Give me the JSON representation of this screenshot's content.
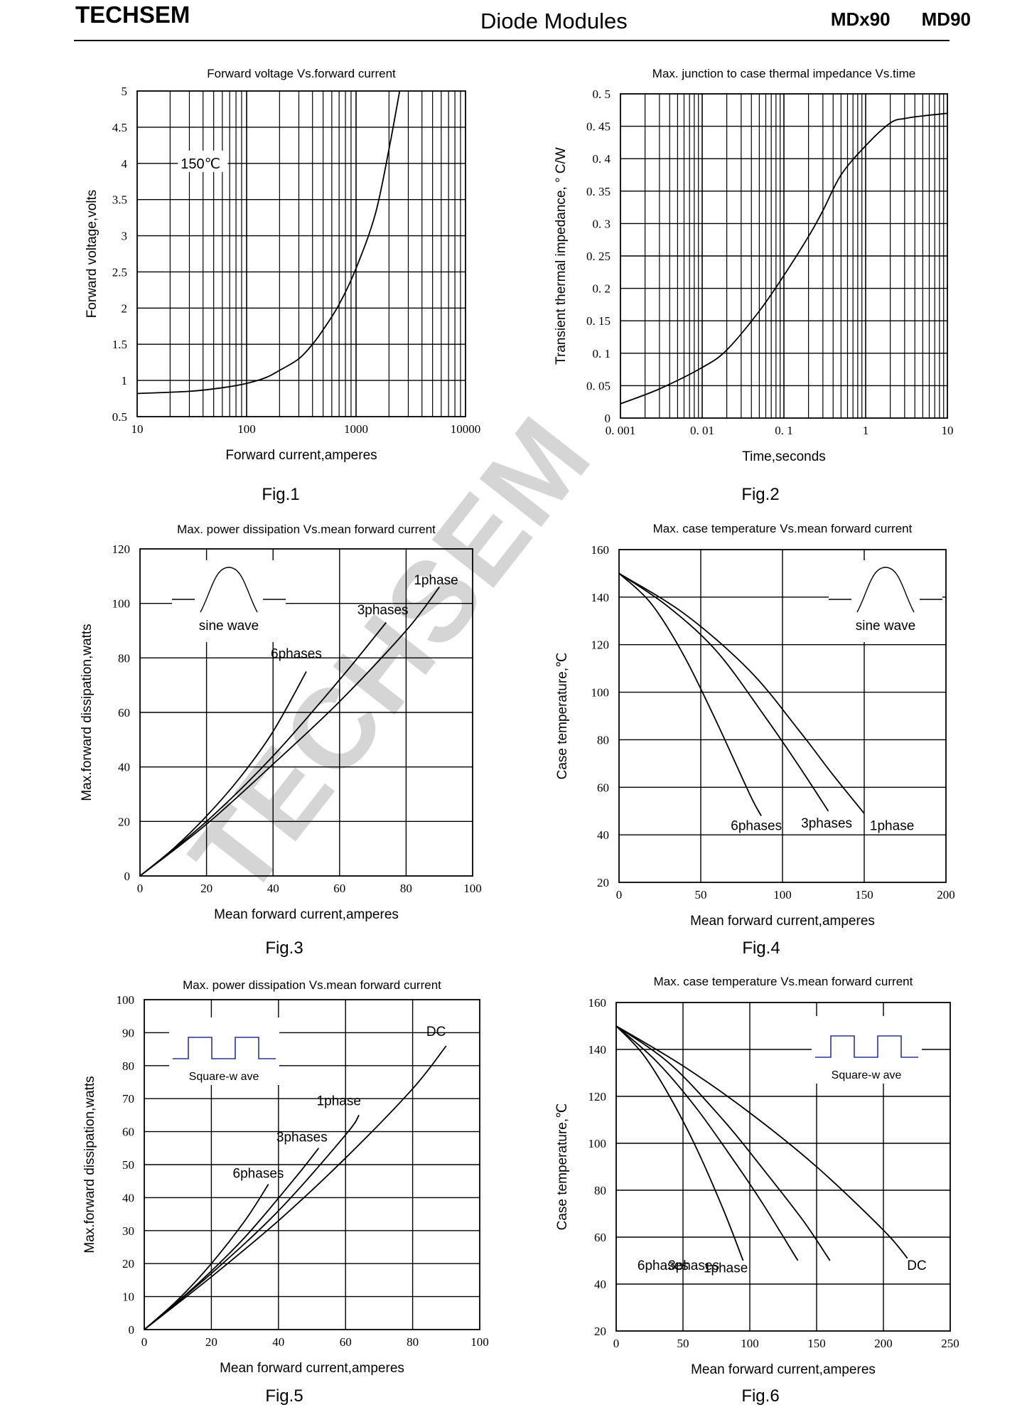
{
  "header": {
    "brand": "TECHSEM",
    "center": "Diode Modules",
    "part1": "MDx90",
    "part2": "MD90"
  },
  "watermark": "TECHSEM",
  "chart_data": [
    {
      "type": "line",
      "figure": "Fig.1",
      "title": "Forward  voltage  Vs.forward  current",
      "xlabel": "Forward  current,amperes",
      "ylabel": "Forward  voltage,volts",
      "xscale": "log",
      "xlim": [
        10,
        10000
      ],
      "ylim": [
        0.5,
        5
      ],
      "xticks": [
        10,
        100,
        1000,
        10000
      ],
      "xtick_labels": [
        "10",
        "100",
        "1000",
        "10000"
      ],
      "yticks": [
        0.5,
        1,
        1.5,
        2,
        2.5,
        3,
        3.5,
        4,
        4.5,
        5
      ],
      "ytick_labels": [
        "0.5",
        "1",
        "1.5",
        "2",
        "2.5",
        "3",
        "3.5",
        "4",
        "4.5",
        "5"
      ],
      "annotations": [
        {
          "text": "150℃",
          "x": 25,
          "y": 4
        }
      ],
      "series": [
        {
          "label": "",
          "label_at": null,
          "x": [
            10,
            30,
            60,
            100,
            150,
            200,
            300,
            400,
            500,
            700,
            1000,
            1500,
            2000,
            2500
          ],
          "y": [
            0.82,
            0.85,
            0.9,
            0.96,
            1.04,
            1.14,
            1.3,
            1.5,
            1.7,
            2.05,
            2.55,
            3.3,
            4.2,
            5.0
          ]
        }
      ]
    },
    {
      "type": "line",
      "figure": "Fig.2",
      "title": "Max. junction  to  case  thermal  impedance  Vs.time",
      "xlabel": "Time,seconds",
      "ylabel": "Transient  thermal  impedance,  ° C/W",
      "xscale": "log",
      "xlim": [
        0.001,
        10
      ],
      "ylim": [
        0,
        0.5
      ],
      "xticks": [
        0.001,
        0.01,
        0.1,
        1,
        10
      ],
      "xtick_labels": [
        "0. 001",
        "0. 01",
        "0. 1",
        "1",
        "10"
      ],
      "yticks": [
        0,
        0.05,
        0.1,
        0.15,
        0.2,
        0.25,
        0.3,
        0.35,
        0.4,
        0.45,
        0.5
      ],
      "ytick_labels": [
        "0",
        "0. 05",
        "0. 1",
        "0. 15",
        "0. 2",
        "0. 25",
        "0. 3",
        "0. 35",
        "0. 4",
        "0. 45",
        "0. 5"
      ],
      "annotations": [],
      "series": [
        {
          "label": "",
          "label_at": null,
          "x": [
            0.001,
            0.003,
            0.01,
            0.02,
            0.05,
            0.1,
            0.2,
            0.3,
            0.5,
            1,
            2,
            3,
            5,
            10
          ],
          "y": [
            0.022,
            0.045,
            0.078,
            0.105,
            0.165,
            0.22,
            0.28,
            0.32,
            0.375,
            0.42,
            0.455,
            0.462,
            0.466,
            0.47
          ]
        }
      ]
    },
    {
      "type": "line",
      "figure": "Fig.3",
      "title": "Max.  power  dissipation  Vs.mean  forward  current",
      "xlabel": "Mean  forward  current,amperes",
      "ylabel": "Max.forward  dissipation,watts",
      "xscale": "linear",
      "xlim": [
        0,
        100
      ],
      "ylim": [
        0,
        120
      ],
      "xticks": [
        0,
        20,
        40,
        60,
        80,
        100
      ],
      "xtick_labels": [
        "0",
        "20",
        "40",
        "60",
        "80",
        "100"
      ],
      "yticks": [
        0,
        20,
        40,
        60,
        80,
        100,
        120
      ],
      "ytick_labels": [
        "0",
        "20",
        "40",
        "60",
        "80",
        "100",
        "120"
      ],
      "annotations": [],
      "inset": {
        "shape": "sine",
        "label": "sine wave"
      },
      "series": [
        {
          "label": "6phases",
          "label_at": [
            47,
            80
          ],
          "x": [
            0,
            10,
            20,
            30,
            40,
            50
          ],
          "y": [
            0,
            10,
            22,
            36,
            53,
            75
          ]
        },
        {
          "label": "3phases",
          "label_at": [
            73,
            96
          ],
          "x": [
            0,
            20,
            40,
            60,
            74
          ],
          "y": [
            0,
            20,
            44,
            72,
            93
          ]
        },
        {
          "label": "1phase",
          "label_at": [
            89,
            107
          ],
          "x": [
            0,
            20,
            40,
            60,
            80,
            90
          ],
          "y": [
            0,
            19,
            41,
            64,
            90,
            106
          ]
        }
      ]
    },
    {
      "type": "line",
      "figure": "Fig.4",
      "title": "Max.  case  temperature  Vs.mean  forward  current",
      "xlabel": "Mean  forward  current,amperes",
      "ylabel": "Case  temperature,℃",
      "xscale": "linear",
      "xlim": [
        0,
        200
      ],
      "ylim": [
        20,
        160
      ],
      "xticks": [
        0,
        50,
        100,
        150,
        200
      ],
      "xtick_labels": [
        "0",
        "50",
        "100",
        "150",
        "200"
      ],
      "yticks": [
        20,
        40,
        60,
        80,
        100,
        120,
        140,
        160
      ],
      "ytick_labels": [
        "20",
        "40",
        "60",
        "80",
        "100",
        "120",
        "140",
        "160"
      ],
      "annotations": [],
      "inset": {
        "shape": "sine",
        "label": "sine wave"
      },
      "series": [
        {
          "label": "6phases",
          "label_at": [
            84,
            42
          ],
          "x": [
            0,
            20,
            40,
            60,
            80,
            87
          ],
          "y": [
            150,
            137,
            115,
            87,
            57,
            48
          ]
        },
        {
          "label": "3phases",
          "label_at": [
            127,
            43
          ],
          "x": [
            0,
            30,
            60,
            90,
            110,
            128
          ],
          "y": [
            150,
            136,
            117,
            89,
            69,
            50
          ]
        },
        {
          "label": "1phase",
          "label_at": [
            167,
            42
          ],
          "x": [
            0,
            40,
            80,
            110,
            130,
            150
          ],
          "y": [
            150,
            133,
            109,
            84,
            66,
            49
          ]
        }
      ]
    },
    {
      "type": "line",
      "figure": "Fig.5",
      "title": "Max.  power  dissipation  Vs.mean  forward  current",
      "xlabel": "Mean  forward  current,amperes",
      "ylabel": "Max.forward  dissipation,watts",
      "xscale": "linear",
      "xlim": [
        0,
        100
      ],
      "ylim": [
        0,
        100
      ],
      "xticks": [
        0,
        20,
        40,
        60,
        80,
        100
      ],
      "xtick_labels": [
        "0",
        "20",
        "40",
        "60",
        "80",
        "100"
      ],
      "yticks": [
        0,
        10,
        20,
        30,
        40,
        50,
        60,
        70,
        80,
        90,
        100
      ],
      "ytick_labels": [
        "0",
        "10",
        "20",
        "30",
        "40",
        "50",
        "60",
        "70",
        "80",
        "90",
        "100"
      ],
      "annotations": [],
      "inset": {
        "shape": "square",
        "label": "Square-w ave"
      },
      "series": [
        {
          "label": "6phases",
          "label_at": [
            34,
            46
          ],
          "x": [
            0,
            10,
            20,
            30,
            37
          ],
          "y": [
            0,
            9,
            20,
            33,
            44
          ]
        },
        {
          "label": "3phases",
          "label_at": [
            47,
            57
          ],
          "x": [
            0,
            15,
            30,
            45,
            52
          ],
          "y": [
            0,
            13,
            28,
            46,
            55
          ]
        },
        {
          "label": "1phase",
          "label_at": [
            58,
            68
          ],
          "x": [
            0,
            20,
            40,
            60,
            64
          ],
          "y": [
            0,
            17,
            36,
            59,
            65
          ]
        },
        {
          "label": "DC",
          "label_at": [
            87,
            89
          ],
          "x": [
            0,
            20,
            40,
            60,
            80,
            90
          ],
          "y": [
            0,
            16,
            33,
            52,
            73,
            86
          ]
        }
      ]
    },
    {
      "type": "line",
      "figure": "Fig.6",
      "title": "Max.  case  temperature  Vs.mean  forward  current",
      "xlabel": "Mean  forward  current,amperes",
      "ylabel": "Case  temperature,℃",
      "xscale": "linear",
      "xlim": [
        0,
        250
      ],
      "ylim": [
        20,
        160
      ],
      "xticks": [
        0,
        50,
        100,
        150,
        200,
        250
      ],
      "xtick_labels": [
        "0",
        "50",
        "100",
        "150",
        "200",
        "250"
      ],
      "yticks": [
        20,
        40,
        60,
        80,
        100,
        120,
        140,
        160
      ],
      "ytick_labels": [
        "20",
        "40",
        "60",
        "80",
        "100",
        "120",
        "140",
        "160"
      ],
      "annotations": [],
      "inset": {
        "shape": "square",
        "label": "Square-w ave"
      },
      "series": [
        {
          "label": "6phases",
          "label_at": [
            35,
            46
          ],
          "x": [
            0,
            20,
            40,
            60,
            80,
            95
          ],
          "y": [
            150,
            138,
            120,
            98,
            72,
            50
          ]
        },
        {
          "label": "3phases",
          "label_at": [
            58,
            46
          ],
          "x": [
            0,
            30,
            60,
            90,
            110,
            136
          ],
          "y": [
            150,
            135,
            115,
            91,
            74,
            50
          ]
        },
        {
          "label": "1phase",
          "label_at": [
            82,
            45
          ],
          "x": [
            0,
            40,
            80,
            110,
            140,
            160
          ],
          "y": [
            150,
            134,
            110,
            89,
            67,
            50
          ]
        },
        {
          "label": "DC",
          "label_at": [
            225,
            46
          ],
          "x": [
            0,
            50,
            100,
            150,
            200,
            218
          ],
          "y": [
            150,
            133,
            113,
            90,
            63,
            51
          ]
        }
      ]
    }
  ],
  "figure_labels": [
    "Fig.1",
    "Fig.2",
    "Fig.3",
    "Fig.4",
    "Fig.5",
    "Fig.6"
  ]
}
